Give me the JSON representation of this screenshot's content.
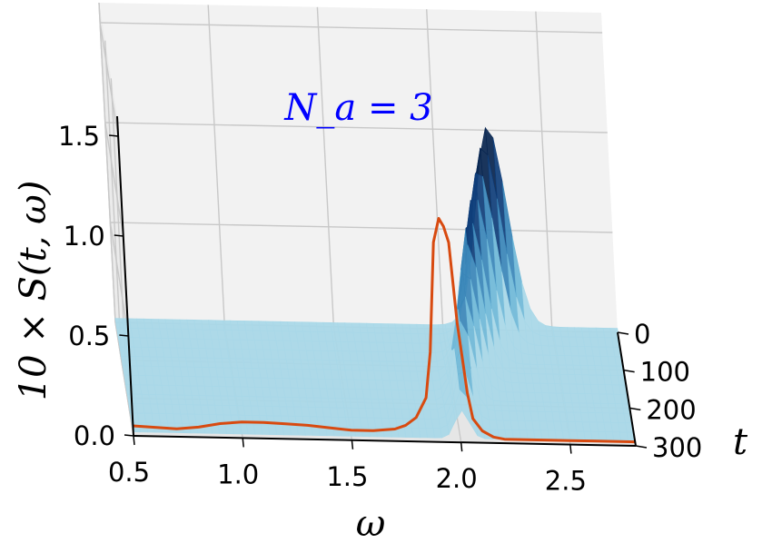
{
  "chart_data": {
    "type": "surface3d",
    "annotation": "N_a = 3",
    "annotation_color": "#0000ff",
    "xlabel": "ω",
    "ylabel": "t",
    "zlabel": "10 × S(t, ω)",
    "xlim": [
      0.5,
      2.8
    ],
    "ylim": [
      0,
      300
    ],
    "zlim": [
      0.0,
      1.6
    ],
    "x_ticks": [
      "0.5",
      "1.0",
      "1.5",
      "2.0",
      "2.5"
    ],
    "y_ticks": [
      "0",
      "100",
      "200",
      "300"
    ],
    "z_ticks": [
      "0.0",
      "0.5",
      "1.0",
      "1.5"
    ],
    "grid": true,
    "surface": {
      "colormap": "blues",
      "colors": [
        "#a8d8e8",
        "#6fb8d8",
        "#3a86b8",
        "#0f3e7a",
        "#08254f"
      ],
      "t_samples": [
        0,
        25,
        50,
        75,
        100,
        125,
        150,
        175,
        200,
        225,
        250,
        275,
        300
      ],
      "peak_omega": [
        2.25,
        2.22,
        2.19,
        2.16,
        2.13,
        2.11,
        2.09,
        2.07,
        2.05,
        2.04,
        2.03,
        2.02,
        2.01
      ],
      "peak_height": [
        1.0,
        0.95,
        0.88,
        0.8,
        0.72,
        0.64,
        0.56,
        0.48,
        0.4,
        0.33,
        0.26,
        0.2,
        0.14
      ],
      "peak_width": [
        0.1,
        0.095,
        0.09,
        0.085,
        0.08,
        0.075,
        0.07,
        0.065,
        0.06,
        0.055,
        0.05,
        0.048,
        0.045
      ],
      "baseline": 0.02
    },
    "series": [
      {
        "color": "#d84a10",
        "t": 300,
        "omega": [
          0.5,
          0.6,
          0.7,
          0.8,
          0.9,
          1.0,
          1.1,
          1.2,
          1.3,
          1.4,
          1.5,
          1.6,
          1.7,
          1.75,
          1.8,
          1.85,
          1.88,
          1.92,
          1.95,
          1.97,
          1.99,
          2.01,
          2.04,
          2.06,
          2.1,
          2.15,
          2.2,
          2.3,
          2.4,
          2.5,
          2.6,
          2.7,
          2.8
        ],
        "values": [
          0.05,
          0.045,
          0.04,
          0.05,
          0.07,
          0.08,
          0.08,
          0.075,
          0.07,
          0.06,
          0.05,
          0.05,
          0.06,
          0.08,
          0.12,
          0.22,
          0.45,
          1.0,
          1.12,
          1.08,
          1.0,
          0.6,
          0.25,
          0.12,
          0.06,
          0.03,
          0.02,
          0.02,
          0.02,
          0.02,
          0.02,
          0.02,
          0.02
        ]
      }
    ]
  }
}
